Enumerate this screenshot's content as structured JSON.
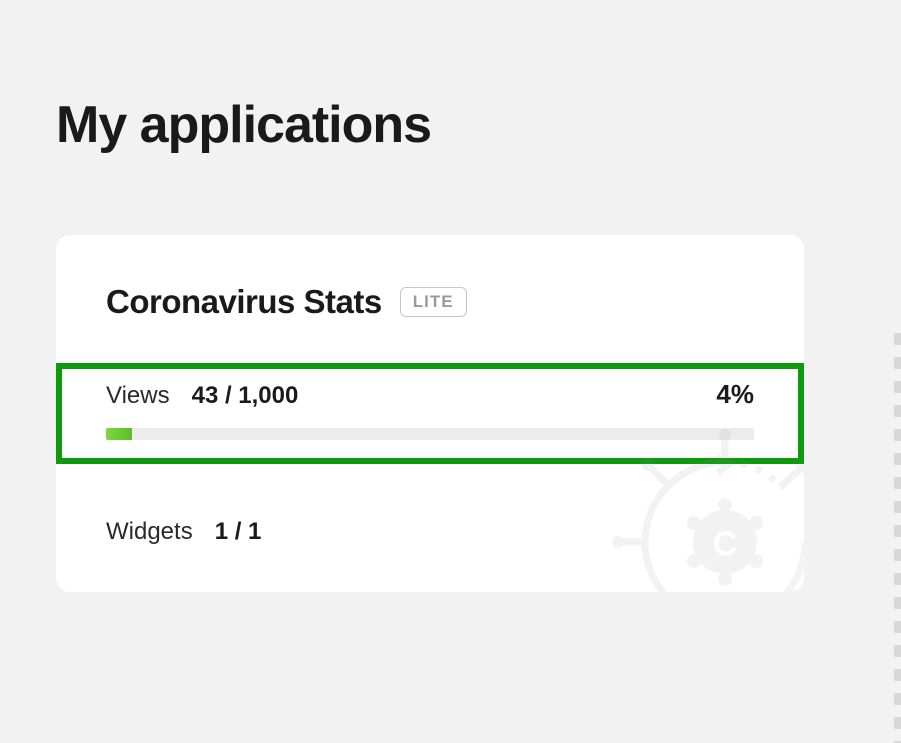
{
  "page": {
    "title": "My applications",
    "background_color": "#f2f2f2"
  },
  "card": {
    "title": "Coronavirus Stats",
    "badge": "LITE",
    "badge_color": "#9a9a9a",
    "background_color": "#ffffff",
    "highlight_border_color": "#0d9b0d",
    "views": {
      "label": "Views",
      "current": 43,
      "limit": 1000,
      "display": "43 / 1,000",
      "percent": 4,
      "percent_display": "4%",
      "bar_bg_color": "#ececec",
      "bar_fill_color_start": "#7fd63f",
      "bar_fill_color_end": "#5cbf2a"
    },
    "widgets": {
      "label": "Widgets",
      "current": 1,
      "limit": 1,
      "display": "1 / 1"
    },
    "watermark_icon": "coronavirus-icon",
    "watermark_letter": "C"
  }
}
